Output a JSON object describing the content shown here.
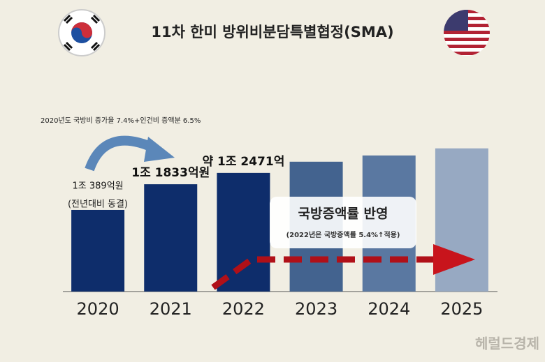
{
  "chart_data": {
    "type": "bar",
    "title": "11차 한미 방위비분담특별협정(SMA)",
    "categories": [
      "2020",
      "2021",
      "2022",
      "2023",
      "2024",
      "2025"
    ],
    "values": [
      10389,
      11833,
      12471,
      13100,
      13450,
      13850
    ],
    "value_labels": [
      "1조 389억원",
      "1조 1833억원",
      "약 1조 2471억",
      null,
      null,
      null
    ],
    "colors": [
      "#0e2d6b",
      "#0e2d6b",
      "#0e2d6b",
      "#43638f",
      "#5a78a1",
      "#97a9c2"
    ],
    "ylim": [
      5800,
      20700
    ],
    "annotations": {
      "growth_note": "2020년도 국방비 증가율 7.4%+인건비 증액분 6.5%",
      "freeze_note": "(전년대비 동결)",
      "box_title": "국방증액률 반영",
      "box_note": "(2022년은 국방증액률 5.4%↑적용)",
      "source": "헤럴드경제"
    }
  }
}
